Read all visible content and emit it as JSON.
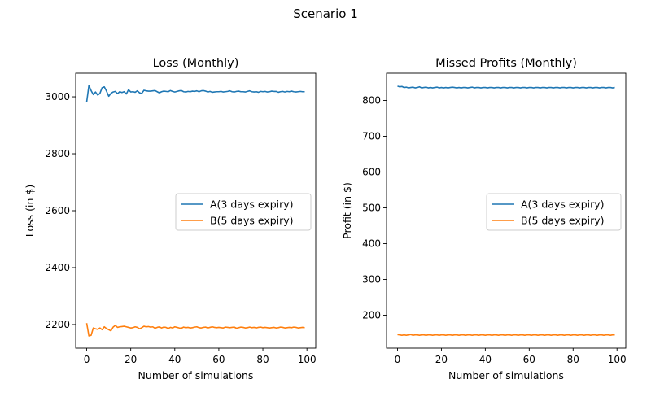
{
  "figure": {
    "suptitle": "Scenario 1"
  },
  "colors": {
    "series_a": "#1f77b4",
    "series_b": "#ff7f0e"
  },
  "chart_data": [
    {
      "type": "line",
      "title": "Loss (Monthly)",
      "xlabel": "Number of simulations",
      "ylabel": "Loss (in $)",
      "xlim": [
        -5,
        104
      ],
      "ylim": [
        2117,
        3083
      ],
      "xticks": [
        0,
        20,
        40,
        60,
        80,
        100
      ],
      "yticks": [
        2200,
        2400,
        2600,
        2800,
        3000
      ],
      "legend": "center-right",
      "series": [
        {
          "name": "A(3 days expiry)",
          "color": "#1f77b4",
          "x": [
            0,
            1,
            2,
            3,
            4,
            5,
            6,
            7,
            8,
            9,
            10,
            11,
            12,
            13,
            14,
            15,
            16,
            17,
            18,
            19,
            20,
            21,
            22,
            23,
            24,
            25,
            26,
            27,
            28,
            29,
            30,
            31,
            32,
            33,
            34,
            35,
            36,
            37,
            38,
            39,
            40,
            41,
            42,
            43,
            44,
            45,
            46,
            47,
            48,
            49,
            50,
            51,
            52,
            53,
            54,
            55,
            56,
            57,
            58,
            59,
            60,
            61,
            62,
            63,
            64,
            65,
            66,
            67,
            68,
            69,
            70,
            71,
            72,
            73,
            74,
            75,
            76,
            77,
            78,
            79,
            80,
            81,
            82,
            83,
            84,
            85,
            86,
            87,
            88,
            89,
            90,
            91,
            92,
            93,
            94,
            95,
            96,
            97,
            98,
            99
          ],
          "y": [
            2982,
            3040,
            3022,
            3008,
            3017,
            3006,
            3012,
            3032,
            3035,
            3020,
            3002,
            3012,
            3017,
            3019,
            3011,
            3018,
            3015,
            3018,
            3010,
            3025,
            3017,
            3018,
            3016,
            3021,
            3014,
            3012,
            3023,
            3021,
            3020,
            3020,
            3021,
            3022,
            3018,
            3014,
            3018,
            3020,
            3019,
            3018,
            3022,
            3019,
            3017,
            3019,
            3021,
            3022,
            3018,
            3017,
            3019,
            3018,
            3020,
            3019,
            3021,
            3018,
            3021,
            3022,
            3020,
            3017,
            3019,
            3016,
            3017,
            3018,
            3018,
            3019,
            3017,
            3018,
            3019,
            3021,
            3018,
            3017,
            3019,
            3020,
            3018,
            3018,
            3017,
            3019,
            3021,
            3018,
            3017,
            3018,
            3016,
            3019,
            3018,
            3019,
            3017,
            3018,
            3020,
            3019,
            3019,
            3016,
            3018,
            3019,
            3017,
            3019,
            3018,
            3020,
            3018,
            3017,
            3018,
            3019,
            3018,
            3018
          ]
        },
        {
          "name": "B(5 days expiry)",
          "color": "#ff7f0e",
          "x": [
            0,
            1,
            2,
            3,
            4,
            5,
            6,
            7,
            8,
            9,
            10,
            11,
            12,
            13,
            14,
            15,
            16,
            17,
            18,
            19,
            20,
            21,
            22,
            23,
            24,
            25,
            26,
            27,
            28,
            29,
            30,
            31,
            32,
            33,
            34,
            35,
            36,
            37,
            38,
            39,
            40,
            41,
            42,
            43,
            44,
            45,
            46,
            47,
            48,
            49,
            50,
            51,
            52,
            53,
            54,
            55,
            56,
            57,
            58,
            59,
            60,
            61,
            62,
            63,
            64,
            65,
            66,
            67,
            68,
            69,
            70,
            71,
            72,
            73,
            74,
            75,
            76,
            77,
            78,
            79,
            80,
            81,
            82,
            83,
            84,
            85,
            86,
            87,
            88,
            89,
            90,
            91,
            92,
            93,
            94,
            95,
            96,
            97,
            98,
            99
          ],
          "y": [
            2205,
            2160,
            2162,
            2188,
            2185,
            2183,
            2188,
            2182,
            2192,
            2186,
            2182,
            2178,
            2191,
            2197,
            2190,
            2192,
            2193,
            2194,
            2192,
            2190,
            2188,
            2189,
            2192,
            2190,
            2185,
            2189,
            2194,
            2192,
            2193,
            2191,
            2192,
            2187,
            2190,
            2192,
            2188,
            2191,
            2190,
            2186,
            2190,
            2188,
            2192,
            2190,
            2188,
            2187,
            2191,
            2189,
            2190,
            2188,
            2189,
            2191,
            2192,
            2189,
            2188,
            2190,
            2191,
            2188,
            2190,
            2192,
            2190,
            2189,
            2190,
            2189,
            2188,
            2191,
            2190,
            2189,
            2190,
            2191,
            2187,
            2189,
            2191,
            2190,
            2188,
            2189,
            2191,
            2189,
            2190,
            2188,
            2190,
            2191,
            2189,
            2190,
            2189,
            2188,
            2189,
            2190,
            2188,
            2189,
            2191,
            2190,
            2188,
            2189,
            2190,
            2189,
            2191,
            2190,
            2188,
            2189,
            2190,
            2189
          ]
        }
      ]
    },
    {
      "type": "line",
      "title": "Missed Profits (Monthly)",
      "xlabel": "Number of simulations",
      "ylabel": "Profit (in $)",
      "xlim": [
        -5,
        104
      ],
      "ylim": [
        108,
        876
      ],
      "xticks": [
        0,
        20,
        40,
        60,
        80,
        100
      ],
      "yticks": [
        200,
        300,
        400,
        500,
        600,
        700,
        800
      ],
      "legend": "center-right",
      "series": [
        {
          "name": "A(3 days expiry)",
          "color": "#1f77b4",
          "x": [
            0,
            1,
            2,
            3,
            4,
            5,
            6,
            7,
            8,
            9,
            10,
            11,
            12,
            13,
            14,
            15,
            16,
            17,
            18,
            19,
            20,
            21,
            22,
            23,
            24,
            25,
            26,
            27,
            28,
            29,
            30,
            31,
            32,
            33,
            34,
            35,
            36,
            37,
            38,
            39,
            40,
            41,
            42,
            43,
            44,
            45,
            46,
            47,
            48,
            49,
            50,
            51,
            52,
            53,
            54,
            55,
            56,
            57,
            58,
            59,
            60,
            61,
            62,
            63,
            64,
            65,
            66,
            67,
            68,
            69,
            70,
            71,
            72,
            73,
            74,
            75,
            76,
            77,
            78,
            79,
            80,
            81,
            82,
            83,
            84,
            85,
            86,
            87,
            88,
            89,
            90,
            91,
            92,
            93,
            94,
            95,
            96,
            97,
            98,
            99
          ],
          "y": [
            840,
            838,
            839,
            836,
            837,
            835,
            836,
            837,
            835,
            836,
            838,
            835,
            836,
            837,
            835,
            836,
            835,
            836,
            837,
            835,
            836,
            835,
            836,
            835,
            836,
            837,
            836,
            835,
            836,
            835,
            836,
            836,
            835,
            836,
            837,
            835,
            836,
            836,
            835,
            836,
            836,
            835,
            836,
            836,
            835,
            836,
            836,
            835,
            836,
            836,
            835,
            836,
            836,
            835,
            836,
            836,
            835,
            836,
            836,
            835,
            836,
            836,
            835,
            836,
            836,
            835,
            836,
            836,
            835,
            836,
            836,
            835,
            836,
            836,
            835,
            836,
            836,
            835,
            836,
            836,
            835,
            836,
            836,
            835,
            836,
            836,
            835,
            836,
            836,
            835,
            836,
            836,
            835,
            836,
            836,
            835,
            836,
            836,
            835,
            836
          ]
        },
        {
          "name": "B(5 days expiry)",
          "color": "#ff7f0e",
          "x": [
            0,
            1,
            2,
            3,
            4,
            5,
            6,
            7,
            8,
            9,
            10,
            11,
            12,
            13,
            14,
            15,
            16,
            17,
            18,
            19,
            20,
            21,
            22,
            23,
            24,
            25,
            26,
            27,
            28,
            29,
            30,
            31,
            32,
            33,
            34,
            35,
            36,
            37,
            38,
            39,
            40,
            41,
            42,
            43,
            44,
            45,
            46,
            47,
            48,
            49,
            50,
            51,
            52,
            53,
            54,
            55,
            56,
            57,
            58,
            59,
            60,
            61,
            62,
            63,
            64,
            65,
            66,
            67,
            68,
            69,
            70,
            71,
            72,
            73,
            74,
            75,
            76,
            77,
            78,
            79,
            80,
            81,
            82,
            83,
            84,
            85,
            86,
            87,
            88,
            89,
            90,
            91,
            92,
            93,
            94,
            95,
            96,
            97,
            98,
            99
          ],
          "y": [
            146,
            145,
            144,
            145,
            144,
            145,
            146,
            144,
            145,
            145,
            144,
            145,
            145,
            144,
            145,
            145,
            144,
            145,
            145,
            144,
            145,
            145,
            144,
            145,
            145,
            144,
            145,
            145,
            144,
            145,
            145,
            144,
            145,
            145,
            144,
            145,
            145,
            144,
            145,
            145,
            144,
            145,
            145,
            144,
            145,
            145,
            144,
            145,
            145,
            144,
            145,
            145,
            144,
            145,
            145,
            144,
            145,
            145,
            144,
            145,
            145,
            144,
            145,
            145,
            144,
            145,
            145,
            144,
            145,
            145,
            144,
            145,
            145,
            144,
            145,
            145,
            144,
            145,
            145,
            144,
            145,
            145,
            144,
            145,
            145,
            144,
            145,
            145,
            144,
            145,
            145,
            144,
            145,
            145,
            144,
            145,
            145,
            144,
            145,
            145
          ]
        }
      ]
    }
  ]
}
